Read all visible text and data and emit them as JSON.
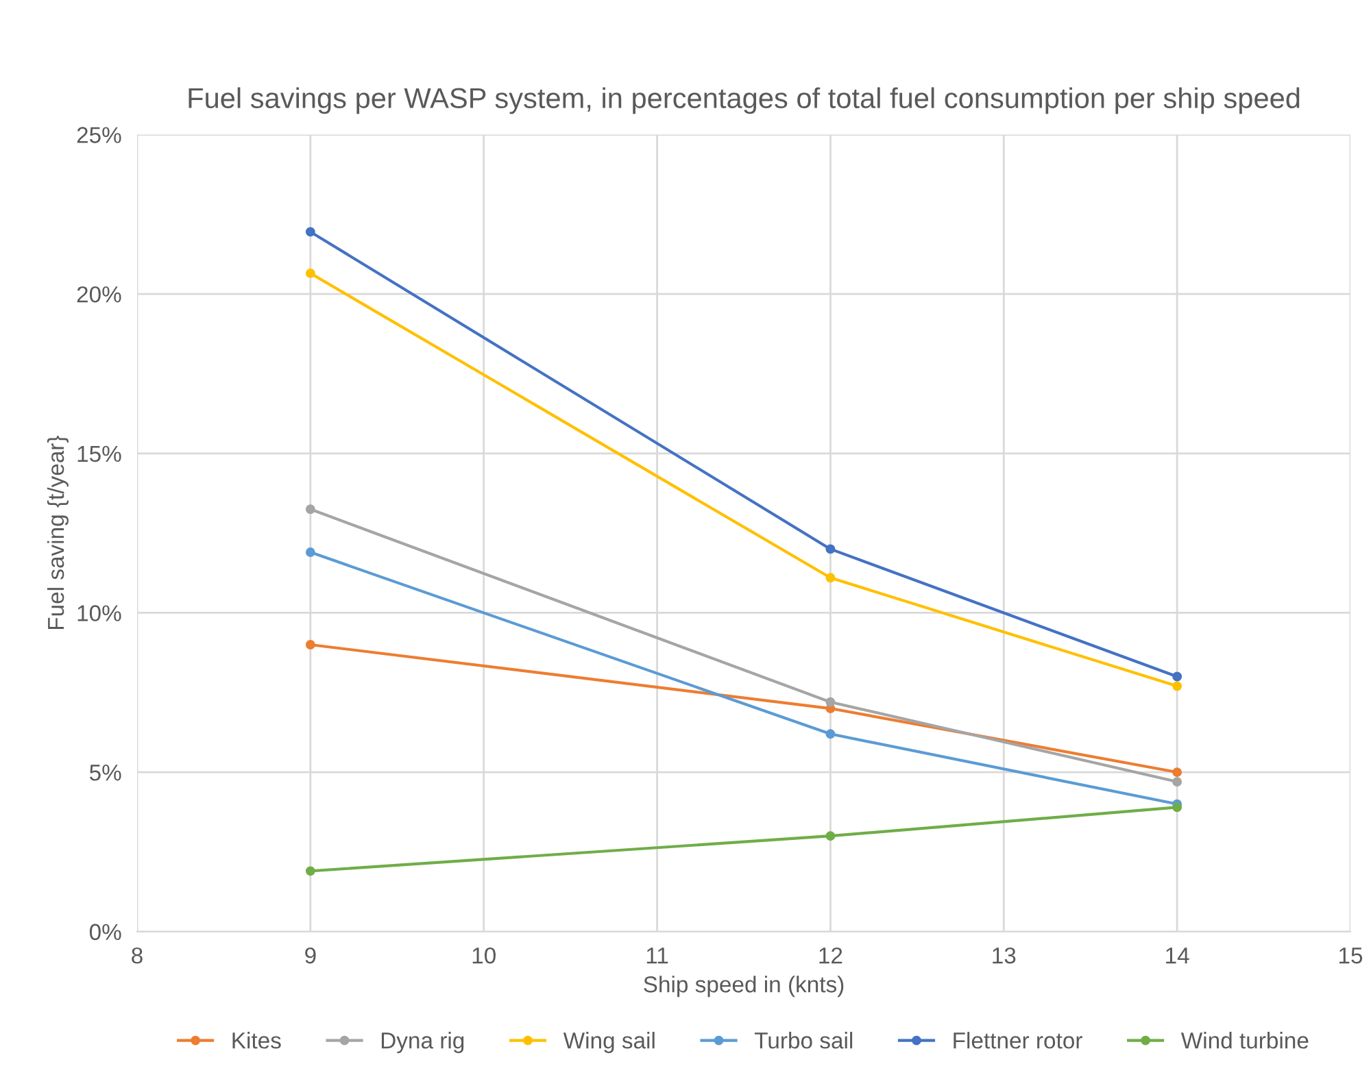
{
  "chart_data": {
    "type": "line",
    "title": "Fuel savings per WASP system, in percentages of total fuel consumption per ship speed",
    "xlabel": "Ship speed in (knts)",
    "ylabel": "Fuel saving {t/year}",
    "x": [
      9,
      12,
      14
    ],
    "series": [
      {
        "name": "Kites",
        "color": "#ed7d31",
        "values": [
          9.0,
          7.0,
          5.0
        ]
      },
      {
        "name": "Dyna rig",
        "color": "#a5a5a5",
        "values": [
          13.25,
          7.2,
          4.7
        ]
      },
      {
        "name": "Wing sail",
        "color": "#ffc000",
        "values": [
          20.65,
          11.1,
          7.7
        ]
      },
      {
        "name": "Turbo sail",
        "color": "#5b9bd5",
        "values": [
          11.9,
          6.2,
          4.0
        ]
      },
      {
        "name": "Flettner rotor",
        "color": "#4472c4",
        "values": [
          21.95,
          12.0,
          8.0
        ]
      },
      {
        "name": "Wind turbine",
        "color": "#70ad47",
        "values": [
          1.9,
          3.0,
          3.9
        ]
      }
    ],
    "xlim": [
      8,
      15
    ],
    "xticks": [
      8,
      9,
      10,
      11,
      12,
      13,
      14,
      15
    ],
    "ylim": [
      0,
      25
    ],
    "yticks": [
      {
        "value": 0,
        "label": "0%"
      },
      {
        "value": 5,
        "label": "5%"
      },
      {
        "value": 10,
        "label": "10%"
      },
      {
        "value": 15,
        "label": "15%"
      },
      {
        "value": 20,
        "label": "20%"
      },
      {
        "value": 25,
        "label": "25%"
      }
    ],
    "grid": true,
    "legend": "bottom",
    "marker": "circle",
    "line_style": "solid"
  }
}
